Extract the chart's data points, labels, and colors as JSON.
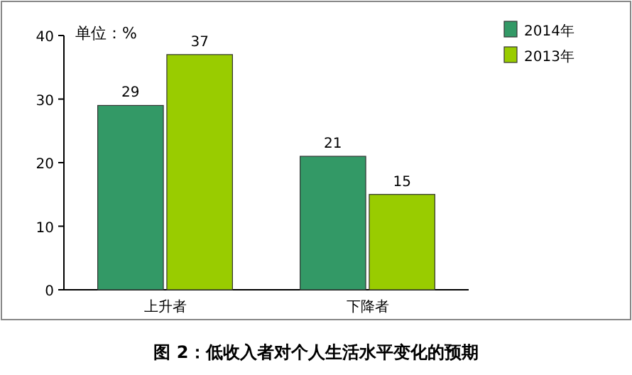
{
  "chart_data": {
    "type": "bar",
    "title": "图 2：低收入者对个人生活水平变化的预期",
    "annotations": [
      "单位：%"
    ],
    "categories": [
      "上升者",
      "下降者"
    ],
    "series": [
      {
        "name": "2014年",
        "color": "#339966",
        "values": [
          29,
          21
        ]
      },
      {
        "name": "2013年",
        "color": "#99cc00",
        "values": [
          37,
          15
        ]
      }
    ],
    "ylim": [
      0,
      40
    ],
    "yticks": [
      0,
      10,
      20,
      30,
      40
    ],
    "data_labels": true,
    "legend": "top right"
  }
}
